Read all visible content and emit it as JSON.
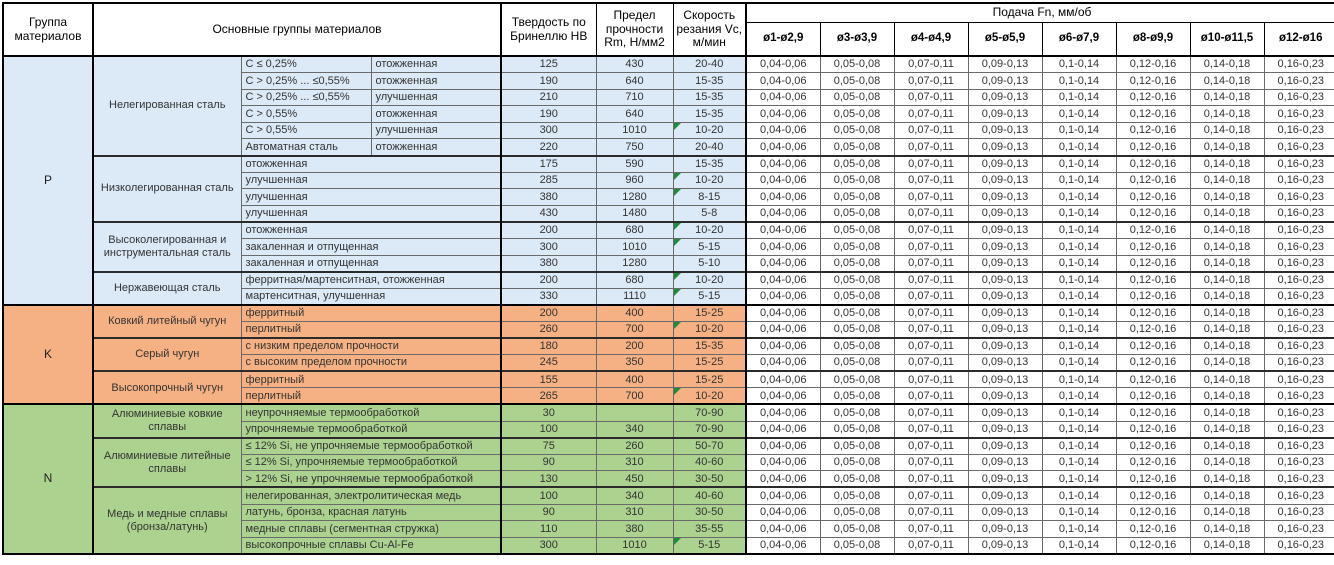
{
  "table": {
    "headers": {
      "group": "Группа материалов",
      "main_groups": "Основные группы материалов",
      "hardness": "Твердость по Бринеллю НВ",
      "strength": "Предел прочности Rm, Н/мм2",
      "speed": "Скорость резания Vc, м/мин",
      "feed": "Подача Fn, мм/об",
      "diameters": [
        "ø1-ø2,9",
        "ø3-ø3,9",
        "ø4-ø4,9",
        "ø5-ø5,9",
        "ø6-ø7,9",
        "ø8-ø9,9",
        "ø10-ø11,5",
        "ø12-ø16"
      ]
    },
    "feed_values": [
      "0,04-0,06",
      "0,05-0,08",
      "0,07-0,11",
      "0,09-0,13",
      "0,1-0,14",
      "0,12-0,16",
      "0,14-0,18",
      "0,16-0,23"
    ],
    "groups": [
      {
        "code": "P",
        "color": "#DCE9F6",
        "subgroups": [
          {
            "name": "Нелегированная сталь",
            "rows": [
              {
                "spec1": "C ≤ 0,25%",
                "spec2": "отожженная",
                "hb": "125",
                "rm": "430",
                "vc": "20-40",
                "marker": false
              },
              {
                "spec1": "C > 0,25% ... ≤0,55%",
                "spec2": "отожженная",
                "hb": "190",
                "rm": "640",
                "vc": "15-35",
                "marker": false
              },
              {
                "spec1": "C > 0,25% ... ≤0,55%",
                "spec2": "улучшенная",
                "hb": "210",
                "rm": "710",
                "vc": "15-35",
                "marker": false
              },
              {
                "spec1": "C > 0,55%",
                "spec2": "отожженная",
                "hb": "190",
                "rm": "640",
                "vc": "15-35",
                "marker": false
              },
              {
                "spec1": "C > 0,55%",
                "spec2": "улучшенная",
                "hb": "300",
                "rm": "1010",
                "vc": "10-20",
                "marker": true
              },
              {
                "spec1": "Автоматная сталь",
                "spec2": "отожженная",
                "hb": "220",
                "rm": "750",
                "vc": "20-40",
                "marker": false
              }
            ]
          },
          {
            "name": "Низколегированная сталь",
            "rows": [
              {
                "spec": "отожженная",
                "hb": "175",
                "rm": "590",
                "vc": "15-35",
                "marker": false
              },
              {
                "spec": "улучшенная",
                "hb": "285",
                "rm": "960",
                "vc": "10-20",
                "marker": true
              },
              {
                "spec": "улучшенная",
                "hb": "380",
                "rm": "1280",
                "vc": "8-15",
                "marker": true
              },
              {
                "spec": "улучшенная",
                "hb": "430",
                "rm": "1480",
                "vc": "5-8",
                "marker": false
              }
            ]
          },
          {
            "name": "Высоколегированная и инструментальная сталь",
            "rows": [
              {
                "spec": "отожженная",
                "hb": "200",
                "rm": "680",
                "vc": "10-20",
                "marker": true
              },
              {
                "spec": "закаленная и отпущенная",
                "hb": "300",
                "rm": "1010",
                "vc": "5-15",
                "marker": true
              },
              {
                "spec": "закаленная и отпущенная",
                "hb": "380",
                "rm": "1280",
                "vc": "5-10",
                "marker": false
              }
            ]
          },
          {
            "name": "Нержавеющая сталь",
            "rows": [
              {
                "spec": "ферритная/мартенситная, отожженная",
                "hb": "200",
                "rm": "680",
                "vc": "10-20",
                "marker": true
              },
              {
                "spec": "мартенситная, улучшенная",
                "hb": "330",
                "rm": "1110",
                "vc": "5-15",
                "marker": true
              }
            ]
          }
        ]
      },
      {
        "code": "K",
        "color": "#F5B183",
        "subgroups": [
          {
            "name": "Ковкий литейный чугун",
            "rows": [
              {
                "spec": "ферритный",
                "hb": "200",
                "rm": "400",
                "vc": "15-25",
                "marker": false
              },
              {
                "spec": "перлитный",
                "hb": "260",
                "rm": "700",
                "vc": "10-20",
                "marker": true
              }
            ]
          },
          {
            "name": "Серый чугун",
            "rows": [
              {
                "spec": "с низким пределом прочности",
                "hb": "180",
                "rm": "200",
                "vc": "15-35",
                "marker": false
              },
              {
                "spec": "с высоким пределом прочности",
                "hb": "245",
                "rm": "350",
                "vc": "15-25",
                "marker": false
              }
            ]
          },
          {
            "name": "Высокопрочный чугун",
            "rows": [
              {
                "spec": "ферритный",
                "hb": "155",
                "rm": "400",
                "vc": "15-25",
                "marker": false
              },
              {
                "spec": "перлитный",
                "hb": "265",
                "rm": "700",
                "vc": "10-20",
                "marker": true
              }
            ]
          }
        ]
      },
      {
        "code": "N",
        "color": "#ABD28F",
        "subgroups": [
          {
            "name": "Алюминиевые ковкие сплавы",
            "rows": [
              {
                "spec": "неупрочняемые термообработкой",
                "hb": "30",
                "rm": "",
                "vc": "70-90",
                "marker": false
              },
              {
                "spec": "упрочняемые термообработкой",
                "hb": "100",
                "rm": "340",
                "vc": "70-90",
                "marker": false
              }
            ]
          },
          {
            "name": "Алюминиевые литейные сплавы",
            "rows": [
              {
                "spec": "≤ 12% Si, не упрочняемые термообработкой",
                "hb": "75",
                "rm": "260",
                "vc": "50-70",
                "marker": false
              },
              {
                "spec": "≤ 12% Si, упрочняемые термообработкой",
                "hb": "90",
                "rm": "310",
                "vc": "40-60",
                "marker": false
              },
              {
                "spec": "> 12% Si, не упрочняемые термообработкой",
                "hb": "130",
                "rm": "450",
                "vc": "30-50",
                "marker": false
              }
            ]
          },
          {
            "name": "Медь и медные сплавы (бронза/латунь)",
            "rows": [
              {
                "spec": "нелегированная, электролитическая медь",
                "hb": "100",
                "rm": "340",
                "vc": "40-60",
                "marker": false
              },
              {
                "spec": "латунь, бронза, красная латунь",
                "hb": "90",
                "rm": "310",
                "vc": "30-50",
                "marker": false
              },
              {
                "spec": "медные сплавы (сегментная стружка)",
                "hb": "110",
                "rm": "380",
                "vc": "35-55",
                "marker": false
              },
              {
                "spec": "высокопрочные сплавы Cu-Al-Fe",
                "hb": "300",
                "rm": "1010",
                "vc": "5-15",
                "marker": true
              }
            ]
          }
        ]
      }
    ],
    "colors": {
      "group_p": "#DCE9F6",
      "group_k": "#F5B183",
      "group_n": "#ABD28F",
      "feed_cell": "#FFFFFF",
      "marker_triangle": "#1F8B3B",
      "border": "#000000"
    }
  }
}
